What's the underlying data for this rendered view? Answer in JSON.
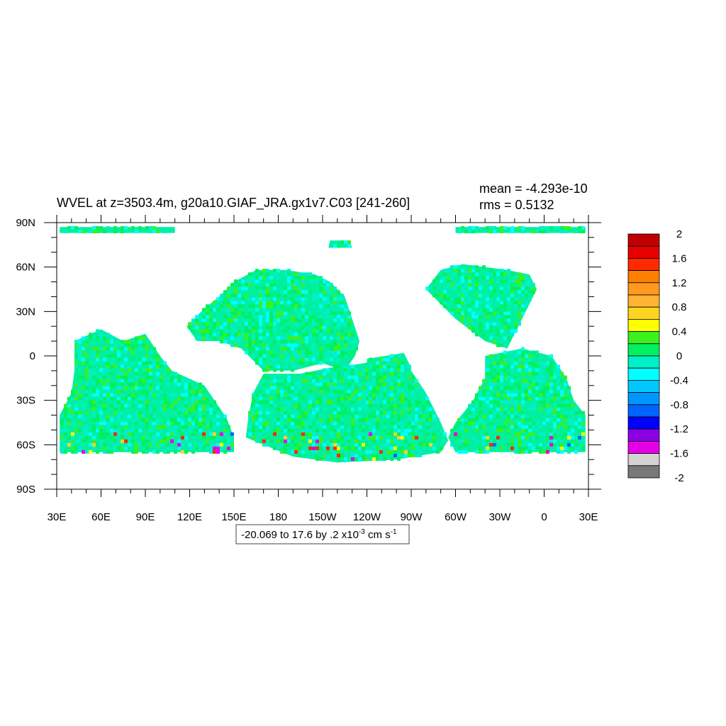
{
  "title": "WVEL at z=3503.4m, g20a10.GIAF_JRA.gx1v7.C03 [241-260]",
  "stats": {
    "mean": "mean = -4.293e-10",
    "rms": "rms = 0.5132"
  },
  "map": {
    "lon_range": [
      30,
      390
    ],
    "lat_range": [
      -90,
      90
    ],
    "x_ticks": [
      {
        "lon": 30,
        "label": "30E"
      },
      {
        "lon": 60,
        "label": "60E"
      },
      {
        "lon": 90,
        "label": "90E"
      },
      {
        "lon": 120,
        "label": "120E"
      },
      {
        "lon": 150,
        "label": "150E"
      },
      {
        "lon": 180,
        "label": "180"
      },
      {
        "lon": 210,
        "label": "150W"
      },
      {
        "lon": 240,
        "label": "120W"
      },
      {
        "lon": 270,
        "label": "90W"
      },
      {
        "lon": 300,
        "label": "60W"
      },
      {
        "lon": 330,
        "label": "30W"
      },
      {
        "lon": 360,
        "label": "0"
      },
      {
        "lon": 390,
        "label": "30E"
      }
    ],
    "y_ticks": [
      {
        "lat": 90,
        "label": "90N"
      },
      {
        "lat": 60,
        "label": "60N"
      },
      {
        "lat": 30,
        "label": "30N"
      },
      {
        "lat": 0,
        "label": "0"
      },
      {
        "lat": -30,
        "label": "30S"
      },
      {
        "lat": -60,
        "label": "60S"
      },
      {
        "lat": -90,
        "label": "90S"
      }
    ],
    "basins": [
      {
        "name": "north-atlantic",
        "poly": [
          [
            280,
            45
          ],
          [
            290,
            58
          ],
          [
            305,
            62
          ],
          [
            320,
            60
          ],
          [
            335,
            58
          ],
          [
            350,
            55
          ],
          [
            355,
            45
          ],
          [
            350,
            35
          ],
          [
            345,
            25
          ],
          [
            340,
            15
          ],
          [
            335,
            5
          ],
          [
            320,
            10
          ],
          [
            300,
            25
          ],
          [
            290,
            35
          ]
        ]
      },
      {
        "name": "south-atlantic",
        "poly": [
          [
            320,
            0
          ],
          [
            345,
            5
          ],
          [
            365,
            0
          ],
          [
            375,
            -15
          ],
          [
            380,
            -30
          ],
          [
            388,
            -40
          ],
          [
            388,
            -65
          ],
          [
            300,
            -65
          ],
          [
            295,
            -55
          ],
          [
            300,
            -45
          ],
          [
            312,
            -30
          ],
          [
            320,
            -15
          ]
        ]
      },
      {
        "name": "indian",
        "poly": [
          [
            42,
            10
          ],
          [
            60,
            18
          ],
          [
            75,
            10
          ],
          [
            90,
            15
          ],
          [
            100,
            0
          ],
          [
            108,
            -10
          ],
          [
            130,
            -20
          ],
          [
            145,
            -42
          ],
          [
            150,
            -55
          ],
          [
            150,
            -65
          ],
          [
            32,
            -65
          ],
          [
            32,
            -40
          ],
          [
            40,
            -25
          ],
          [
            42,
            -10
          ]
        ]
      },
      {
        "name": "west-pacific",
        "poly": [
          [
            118,
            20
          ],
          [
            130,
            32
          ],
          [
            140,
            40
          ],
          [
            150,
            50
          ],
          [
            165,
            58
          ],
          [
            185,
            58
          ],
          [
            205,
            55
          ],
          [
            215,
            50
          ],
          [
            225,
            40
          ],
          [
            230,
            25
          ],
          [
            235,
            10
          ],
          [
            232,
            0
          ],
          [
            225,
            -10
          ],
          [
            210,
            -5
          ],
          [
            190,
            -10
          ],
          [
            170,
            -10
          ],
          [
            155,
            5
          ],
          [
            140,
            10
          ],
          [
            125,
            10
          ]
        ]
      },
      {
        "name": "south-pacific",
        "poly": [
          [
            170,
            -12
          ],
          [
            195,
            -12
          ],
          [
            215,
            -8
          ],
          [
            238,
            -5
          ],
          [
            255,
            0
          ],
          [
            270,
            -10
          ],
          [
            280,
            -25
          ],
          [
            290,
            -45
          ],
          [
            295,
            -57
          ],
          [
            290,
            -65
          ],
          [
            260,
            -70
          ],
          [
            220,
            -72
          ],
          [
            190,
            -68
          ],
          [
            170,
            -60
          ],
          [
            158,
            -55
          ],
          [
            160,
            -40
          ],
          [
            163,
            -25
          ]
        ]
      },
      {
        "name": "east-pacific",
        "poly": [
          [
            240,
            -2
          ],
          [
            265,
            2
          ],
          [
            270,
            -8
          ],
          [
            268,
            -25
          ],
          [
            262,
            -35
          ],
          [
            250,
            -38
          ],
          [
            243,
            -25
          ],
          [
            240,
            -12
          ]
        ]
      },
      {
        "name": "arctic-west",
        "poly": [
          [
            32,
            87
          ],
          [
            110,
            87
          ],
          [
            110,
            83
          ],
          [
            32,
            83
          ]
        ]
      },
      {
        "name": "arctic-east",
        "poly": [
          [
            300,
            87
          ],
          [
            388,
            87
          ],
          [
            388,
            83
          ],
          [
            300,
            83
          ]
        ]
      },
      {
        "name": "beaufort",
        "poly": [
          [
            215,
            78
          ],
          [
            228,
            78
          ],
          [
            230,
            73
          ],
          [
            214,
            73
          ]
        ]
      }
    ]
  },
  "colorbar": {
    "colors": [
      "#c00000",
      "#e60000",
      "#ff2a00",
      "#ff7f00",
      "#ff9a1e",
      "#ffb432",
      "#ffd41e",
      "#ffff00",
      "#3cf01e",
      "#00f060",
      "#00f0c8",
      "#00ffff",
      "#00c8ff",
      "#0096ff",
      "#0064ff",
      "#0000ff",
      "#8c00e6",
      "#e600e6",
      "#d2d2d2",
      "#787878"
    ],
    "labels": [
      "2",
      "1.6",
      "1.2",
      "0.8",
      "0.4",
      "0",
      "-0.4",
      "-0.8",
      "-1.2",
      "-1.6",
      "-2"
    ]
  },
  "info": {
    "prefix": "-20.069 to 17.6 by .2 x10",
    "exp": "-3",
    "unit": " cm s",
    "unit_exp": "-1"
  }
}
